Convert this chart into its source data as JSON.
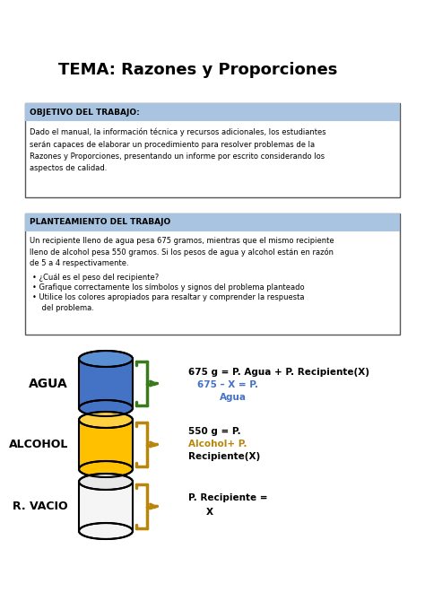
{
  "title": "TEMA: Razones y Proporciones",
  "title_fontsize": 13,
  "bg_color": "#ffffff",
  "box1_header": "OBJETIVO DEL TRABAJO:",
  "box1_header_bg": "#a8c4e0",
  "box1_body_lines": [
    "Dado el manual, la información técnica y recursos adicionales, los estudiantes",
    "serán capaces de elaborar un procedimiento para resolver problemas de la",
    "Razones y Proporciones, presentando un informe por escrito considerando los",
    "aspectos de calidad."
  ],
  "box2_header": "PLANTEAMIENTO DEL TRABAJO",
  "box2_header_bg": "#a8c4e0",
  "box2_body_lines": [
    "Un recipiente lleno de agua pesa 675 gramos, mientras que el mismo recipiente",
    "lleno de alcohol pesa 550 gramos. Si los pesos de agua y alcohol están en razón",
    "de 5 a 4 respectivamente."
  ],
  "box2_bullets": [
    "¿Cuál es el peso del recipiente?",
    "Grafique correctamente los símbolos y signos del problema planteado",
    "Utilice los colores apropiados para resaltar y comprender la respuesta",
    "    del problema."
  ],
  "agua_label": "AGUA",
  "alcohol_label": "ALCOHOL",
  "vacio_label": "R. VACIO",
  "agua_color": "#4472c4",
  "agua_top_color": "#5b8fd4",
  "alcohol_color": "#ffc000",
  "alcohol_top_color": "#ffd040",
  "vacio_fill": "#f5f5f5",
  "bracket_agua_color": "#3a7a1a",
  "bracket_alcohol_color": "#b8860b",
  "bracket_vacio_color": "#b8860b",
  "eq1_black": "675 g = P. Agua + P. Recipiente(X)",
  "eq1_blue": "675 – X = P.",
  "eq1_blue2": "Agua",
  "eq2_black1": "550 g = P.",
  "eq2_strike": "Alcohol+ P.",
  "eq2_black2": "Recipiente(X)",
  "eq3_black1": "P. Recipiente =",
  "eq3_black2": "X",
  "blue_color": "#4472c4",
  "strike_color": "#b8860b",
  "text_color": "#000000",
  "border_color": "#555555"
}
